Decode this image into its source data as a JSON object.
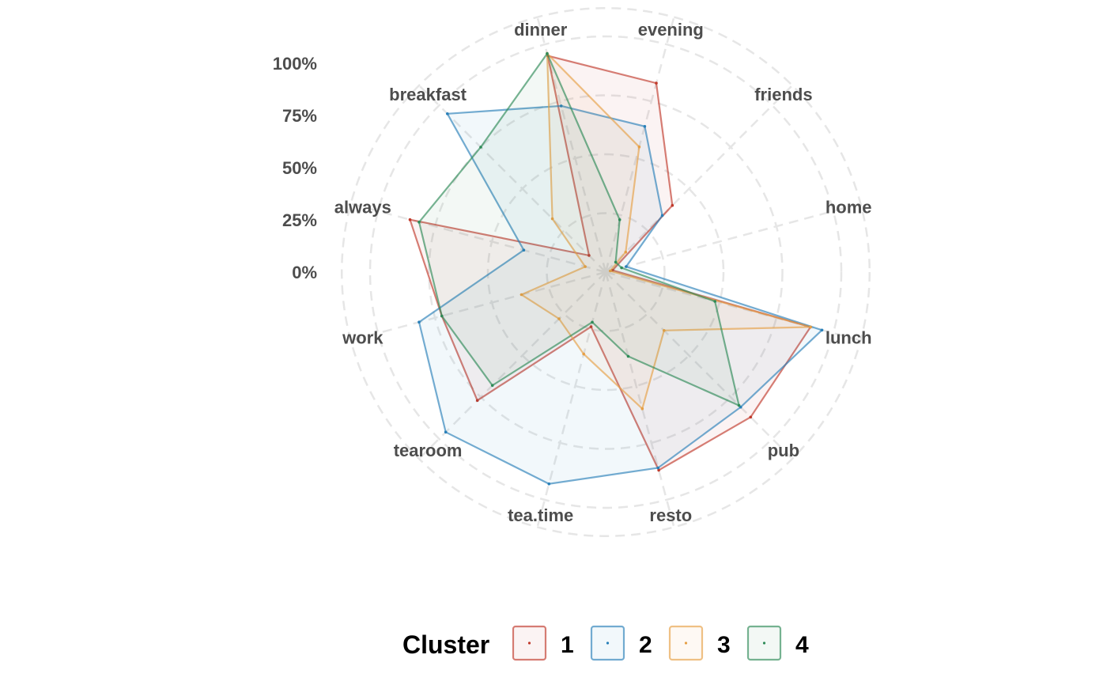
{
  "chart_data": {
    "type": "radar",
    "axes": [
      "always",
      "breakfast",
      "dinner",
      "evening",
      "friends",
      "home",
      "lunch",
      "pub",
      "resto",
      "tea.time",
      "tearoom",
      "work"
    ],
    "radial_ticks": [
      "0%",
      "25%",
      "50%",
      "75%",
      "100%"
    ],
    "rlim": [
      0,
      1
    ],
    "legend": {
      "title": "Cluster",
      "position": "bottom"
    },
    "series": [
      {
        "name": "1",
        "color": "#C0392B",
        "values": [
          0.86,
          0.1,
          0.95,
          0.83,
          0.4,
          0.03,
          0.9,
          0.87,
          0.87,
          0.24,
          0.77,
          0.72
        ]
      },
      {
        "name": "2",
        "color": "#2980B9",
        "values": [
          0.36,
          0.95,
          0.73,
          0.64,
          0.34,
          0.09,
          0.95,
          0.81,
          0.86,
          0.93,
          0.96,
          0.82
        ]
      },
      {
        "name": "3",
        "color": "#E69F45",
        "values": [
          0.09,
          0.32,
          0.96,
          0.55,
          0.12,
          0.02,
          0.9,
          0.35,
          0.6,
          0.36,
          0.28,
          0.37
        ]
      },
      {
        "name": "4",
        "color": "#2E8B57",
        "values": [
          0.82,
          0.75,
          0.96,
          0.23,
          0.06,
          0.07,
          0.48,
          0.8,
          0.37,
          0.22,
          0.68,
          0.72
        ]
      }
    ]
  }
}
